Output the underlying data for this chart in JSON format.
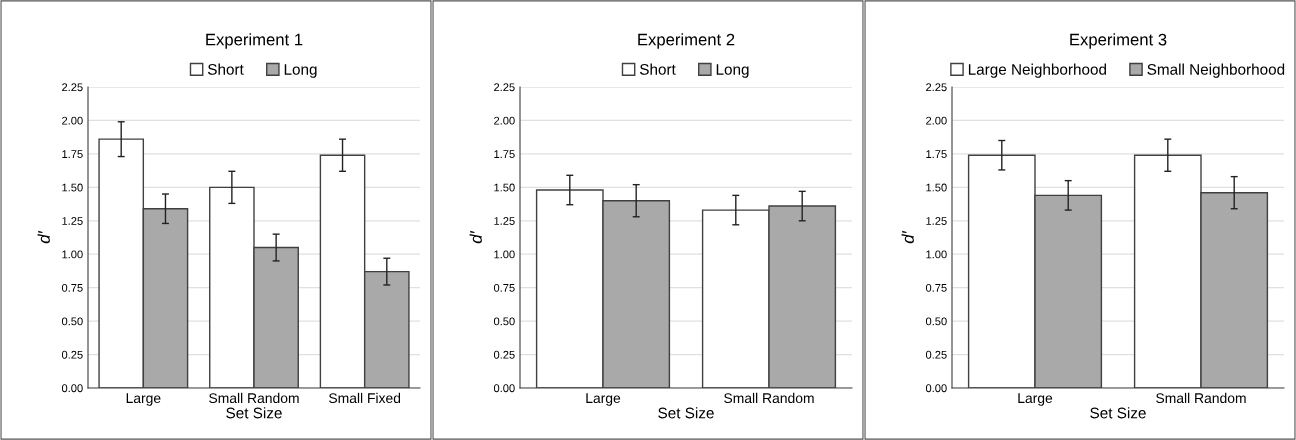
{
  "chart_data": [
    {
      "type": "bar",
      "title": "Experiment 1",
      "xlabel": "Set Size",
      "ylabel": "d′",
      "categories": [
        "Large",
        "Small Random",
        "Small Fixed"
      ],
      "series": [
        {
          "name": "Short",
          "color": "#ffffff",
          "values": [
            1.86,
            1.5,
            1.74
          ],
          "errors": [
            0.13,
            0.12,
            0.12
          ]
        },
        {
          "name": "Long",
          "color": "#a9a9a9",
          "values": [
            1.34,
            1.05,
            0.87
          ],
          "errors": [
            0.11,
            0.1,
            0.1
          ]
        }
      ],
      "ylim": [
        0,
        2.25
      ],
      "yticks": [
        {
          "value": 0,
          "label": "0.00"
        },
        {
          "value": 0.25,
          "label": "0.25"
        },
        {
          "value": 0.5,
          "label": "0.50"
        },
        {
          "value": 0.75,
          "label": "0.75"
        },
        {
          "value": 1,
          "label": "1.00"
        },
        {
          "value": 1.25,
          "label": "1.25"
        },
        {
          "value": 1.5,
          "label": "1.50"
        },
        {
          "value": 1.75,
          "label": "1.75"
        },
        {
          "value": 2,
          "label": "2.00"
        },
        {
          "value": 2.25,
          "label": "2.25"
        }
      ],
      "grid": "y",
      "legend": "top"
    },
    {
      "type": "bar",
      "title": "Experiment 2",
      "xlabel": "Set Size",
      "ylabel": "d′",
      "categories": [
        "Large",
        "Small Random"
      ],
      "series": [
        {
          "name": "Short",
          "color": "#ffffff",
          "values": [
            1.48,
            1.33
          ],
          "errors": [
            0.11,
            0.11
          ]
        },
        {
          "name": "Long",
          "color": "#a9a9a9",
          "values": [
            1.4,
            1.36
          ],
          "errors": [
            0.12,
            0.11
          ]
        }
      ],
      "ylim": [
        0,
        2.25
      ],
      "yticks": [
        {
          "value": 0,
          "label": "0.00"
        },
        {
          "value": 0.25,
          "label": "0.25"
        },
        {
          "value": 0.5,
          "label": "0.50"
        },
        {
          "value": 0.75,
          "label": "0.75"
        },
        {
          "value": 1,
          "label": "1.00"
        },
        {
          "value": 1.25,
          "label": "1.25"
        },
        {
          "value": 1.5,
          "label": "1.50"
        },
        {
          "value": 1.75,
          "label": "1.75"
        },
        {
          "value": 2,
          "label": "2.00"
        },
        {
          "value": 2.25,
          "label": "2.25"
        }
      ],
      "grid": "y",
      "legend": "top"
    },
    {
      "type": "bar",
      "title": "Experiment 3",
      "xlabel": "Set Size",
      "ylabel": "d′",
      "categories": [
        "Large",
        "Small Random"
      ],
      "series": [
        {
          "name": "Large Neighborhood",
          "color": "#ffffff",
          "values": [
            1.74,
            1.74
          ],
          "errors": [
            0.11,
            0.12
          ]
        },
        {
          "name": "Small Neighborhood",
          "color": "#a9a9a9",
          "values": [
            1.44,
            1.46
          ],
          "errors": [
            0.11,
            0.12
          ]
        }
      ],
      "ylim": [
        0,
        2.25
      ],
      "yticks": [
        {
          "value": 0,
          "label": "0.00"
        },
        {
          "value": 0.25,
          "label": "0.25"
        },
        {
          "value": 0.5,
          "label": "0.50"
        },
        {
          "value": 0.75,
          "label": "0.75"
        },
        {
          "value": 1,
          "label": "1.00"
        },
        {
          "value": 1.25,
          "label": "1.25"
        },
        {
          "value": 1.5,
          "label": "1.50"
        },
        {
          "value": 1.75,
          "label": "1.75"
        },
        {
          "value": 2,
          "label": "2.00"
        },
        {
          "value": 2.25,
          "label": "2.25"
        }
      ],
      "grid": "y",
      "legend": "top"
    }
  ]
}
